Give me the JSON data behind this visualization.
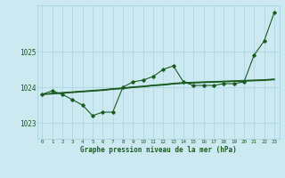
{
  "title": "Graphe pression niveau de la mer (hPa)",
  "bg_color": "#cce8f0",
  "grid_color": "#9ecfdf",
  "line_color": "#1a5c20",
  "xlim": [
    -0.5,
    23.5
  ],
  "ylim": [
    1022.55,
    1026.3
  ],
  "yticks": [
    1023,
    1024,
    1025
  ],
  "xtick_labels": [
    "0",
    "1",
    "2",
    "3",
    "4",
    "5",
    "6",
    "7",
    "8",
    "9",
    "10",
    "11",
    "12",
    "13",
    "14",
    "15",
    "16",
    "17",
    "18",
    "19",
    "20",
    "21",
    "22",
    "23"
  ],
  "main_line": [
    1023.8,
    1023.9,
    1023.8,
    1023.65,
    1023.5,
    1023.2,
    1023.3,
    1023.3,
    1024.0,
    1024.15,
    1024.2,
    1024.3,
    1024.5,
    1024.6,
    1024.15,
    1024.05,
    1024.05,
    1024.05,
    1024.1,
    1024.1,
    1024.15,
    1024.9,
    1025.3,
    1026.1
  ],
  "flat_lines": [
    [
      1023.8,
      1023.82,
      1023.84,
      1023.86,
      1023.88,
      1023.9,
      1023.92,
      1023.95,
      1023.97,
      1024.0,
      1024.02,
      1024.05,
      1024.07,
      1024.1,
      1024.12,
      1024.13,
      1024.14,
      1024.15,
      1024.16,
      1024.17,
      1024.18,
      1024.19,
      1024.2,
      1024.22
    ],
    [
      1023.8,
      1023.81,
      1023.83,
      1023.85,
      1023.87,
      1023.89,
      1023.91,
      1023.94,
      1023.96,
      1023.99,
      1024.01,
      1024.04,
      1024.06,
      1024.09,
      1024.11,
      1024.12,
      1024.13,
      1024.14,
      1024.15,
      1024.16,
      1024.17,
      1024.18,
      1024.19,
      1024.21
    ],
    [
      1023.8,
      1023.83,
      1023.85,
      1023.87,
      1023.89,
      1023.91,
      1023.93,
      1023.96,
      1023.98,
      1024.01,
      1024.03,
      1024.06,
      1024.08,
      1024.11,
      1024.13,
      1024.14,
      1024.15,
      1024.16,
      1024.17,
      1024.18,
      1024.19,
      1024.2,
      1024.21,
      1024.23
    ]
  ]
}
